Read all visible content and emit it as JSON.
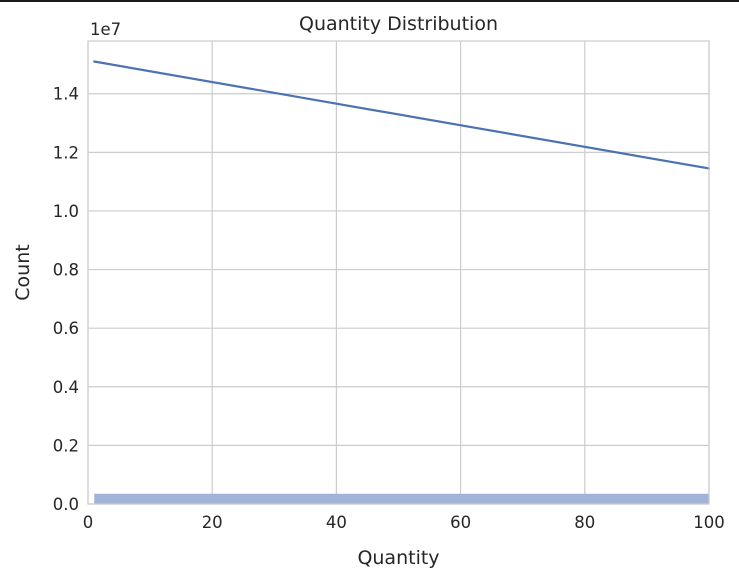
{
  "chart_data": {
    "type": "line",
    "title": "Quantity Distribution",
    "xlabel": "Quantity",
    "ylabel": "Count",
    "y_offset_label": "1e7",
    "y_scale_factor": 10000000,
    "xlim": [
      0,
      100
    ],
    "ylim": [
      0,
      1.58
    ],
    "x_ticks": [
      0,
      20,
      40,
      60,
      80,
      100
    ],
    "x_tick_labels": [
      "0",
      "20",
      "40",
      "60",
      "80",
      "100"
    ],
    "y_ticks": [
      0.0,
      0.2,
      0.4,
      0.6,
      0.8,
      1.0,
      1.2,
      1.4
    ],
    "y_tick_labels": [
      "0.0",
      "0.2",
      "0.4",
      "0.6",
      "0.8",
      "1.0",
      "1.2",
      "1.4"
    ],
    "grid": true,
    "series": [
      {
        "type": "line",
        "color": "#4c72b0",
        "x": [
          1,
          100
        ],
        "y": [
          1.51,
          1.145
        ]
      },
      {
        "type": "histogram",
        "color": "#a1b3d9",
        "bin_range": [
          1,
          100
        ],
        "y": 0.035
      }
    ]
  }
}
